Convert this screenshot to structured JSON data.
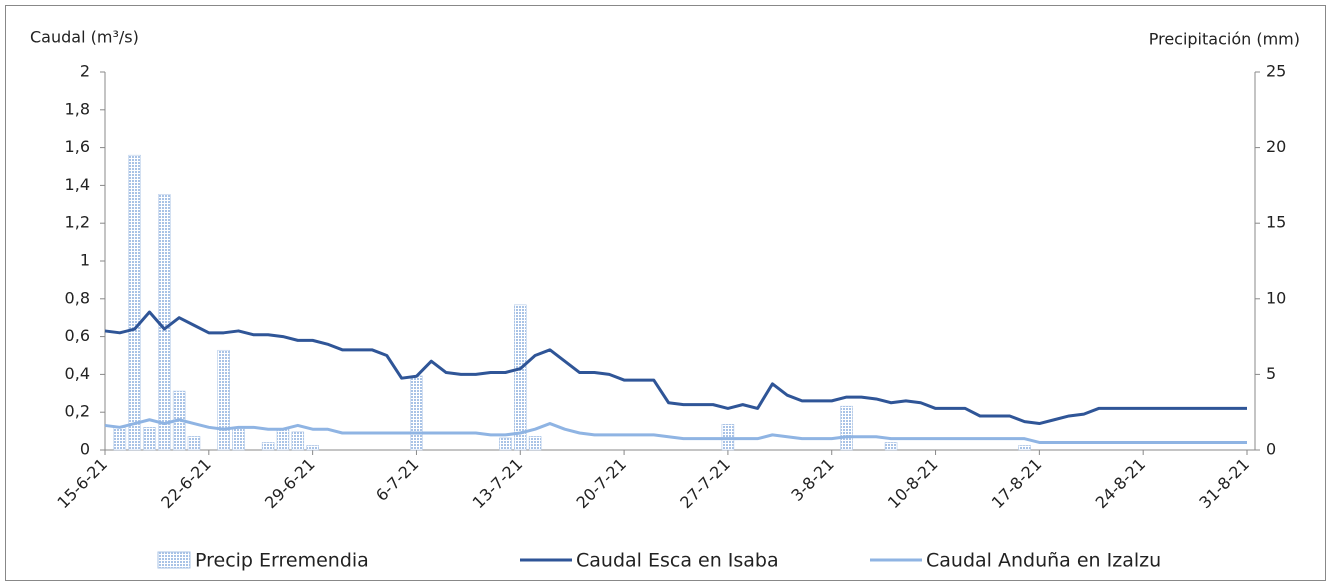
{
  "chart_data": {
    "type": "combo",
    "y_label": "Caudal (m³/s)",
    "y2_label": "Precipitación (mm)",
    "categories": [
      "15-6-21",
      null,
      null,
      null,
      null,
      null,
      null,
      "22-6-21",
      null,
      null,
      null,
      null,
      null,
      null,
      "29-6-21",
      null,
      null,
      null,
      null,
      null,
      null,
      "6-7-21",
      null,
      null,
      null,
      null,
      null,
      null,
      "13-7-21",
      null,
      null,
      null,
      null,
      null,
      null,
      "20-7-21",
      null,
      null,
      null,
      null,
      null,
      null,
      "27-7-21",
      null,
      null,
      null,
      null,
      null,
      null,
      "3-8-21",
      null,
      null,
      null,
      null,
      null,
      null,
      "10-8-21",
      null,
      null,
      null,
      null,
      null,
      null,
      "17-8-21",
      null,
      null,
      null,
      null,
      null,
      null,
      "24-8-21",
      null,
      null,
      null,
      null,
      null,
      null,
      "31-8-21"
    ],
    "ylim": [
      0,
      2
    ],
    "yticks": [
      0,
      {
        "value": 0.2,
        "label": "0,2"
      },
      {
        "value": 0.4,
        "label": "0,4"
      },
      {
        "value": 0.6,
        "label": "0,6"
      },
      {
        "value": 0.8,
        "label": "0,8"
      },
      1,
      {
        "value": 1.2,
        "label": "1,2"
      },
      {
        "value": 1.4,
        "label": "1,4"
      },
      {
        "value": 1.6,
        "label": "1,6"
      },
      {
        "value": 1.8,
        "label": "1,8"
      },
      2
    ],
    "y2lim": [
      0,
      25
    ],
    "y2ticks": [
      0,
      5,
      10,
      15,
      20,
      25
    ],
    "series": [
      {
        "name": "Precip Erremendia",
        "type": "bar",
        "axis": "y2",
        "color": "#a9c3e6",
        "values": [
          0,
          1.5,
          19.5,
          1.5,
          16.9,
          3.9,
          0.9,
          0,
          6.6,
          1.5,
          0,
          0.5,
          1.4,
          1.2,
          0.3,
          0,
          0,
          0,
          0,
          0,
          0,
          4.9,
          0,
          0,
          0,
          0,
          0,
          0.8,
          9.6,
          0.9,
          0,
          0,
          0,
          0,
          0,
          0,
          0,
          0,
          0,
          0,
          0,
          0,
          1.7,
          0,
          0,
          0,
          0,
          0,
          0,
          0,
          2.9,
          0,
          0,
          0.5,
          0,
          0,
          0,
          0,
          0,
          0,
          0,
          0,
          0.3,
          0,
          0,
          0,
          0,
          0,
          0,
          0,
          0,
          0,
          0,
          0,
          0,
          0,
          0,
          0
        ]
      },
      {
        "name": "Caudal Esca en Isaba",
        "type": "line",
        "color": "#2f5597",
        "values": [
          0.63,
          0.62,
          0.64,
          0.73,
          0.64,
          0.7,
          0.66,
          0.62,
          0.62,
          0.63,
          0.61,
          0.61,
          0.6,
          0.58,
          0.58,
          0.56,
          0.53,
          0.53,
          0.53,
          0.5,
          0.38,
          0.39,
          0.47,
          0.41,
          0.4,
          0.4,
          0.41,
          0.41,
          0.43,
          0.5,
          0.53,
          0.47,
          0.41,
          0.41,
          0.4,
          0.37,
          0.37,
          0.37,
          0.25,
          0.24,
          0.24,
          0.24,
          0.22,
          0.24,
          0.22,
          0.35,
          0.29,
          0.26,
          0.26,
          0.26,
          0.28,
          0.28,
          0.27,
          0.25,
          0.26,
          0.25,
          0.22,
          0.22,
          0.22,
          0.18,
          0.18,
          0.18,
          0.15,
          0.14,
          0.16,
          0.18,
          0.19,
          0.22,
          0.22,
          0.22,
          0.22,
          0.22,
          0.22,
          0.22,
          0.22,
          0.22,
          0.22,
          0.22
        ]
      },
      {
        "name": "Caudal Anduña en Izalzu",
        "type": "line",
        "color": "#8fb4e3",
        "values": [
          0.13,
          0.12,
          0.14,
          0.16,
          0.14,
          0.16,
          0.14,
          0.12,
          0.11,
          0.12,
          0.12,
          0.11,
          0.11,
          0.13,
          0.11,
          0.11,
          0.09,
          0.09,
          0.09,
          0.09,
          0.09,
          0.09,
          0.09,
          0.09,
          0.09,
          0.09,
          0.08,
          0.08,
          0.09,
          0.11,
          0.14,
          0.11,
          0.09,
          0.08,
          0.08,
          0.08,
          0.08,
          0.08,
          0.07,
          0.06,
          0.06,
          0.06,
          0.06,
          0.06,
          0.06,
          0.08,
          0.07,
          0.06,
          0.06,
          0.06,
          0.07,
          0.07,
          0.07,
          0.06,
          0.06,
          0.06,
          0.06,
          0.06,
          0.06,
          0.06,
          0.06,
          0.06,
          0.06,
          0.04,
          0.04,
          0.04,
          0.04,
          0.04,
          0.04,
          0.04,
          0.04,
          0.04,
          0.04,
          0.04,
          0.04,
          0.04,
          0.04,
          0.04
        ]
      }
    ]
  }
}
